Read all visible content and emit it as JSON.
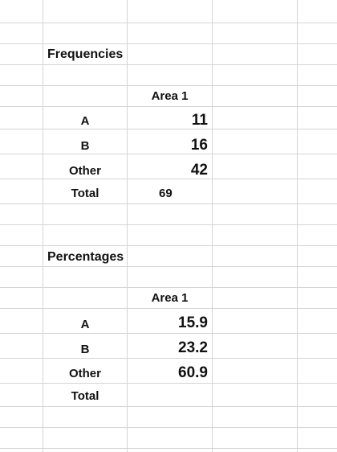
{
  "frequencies": {
    "title": "Frequencies",
    "column_header": "Area 1",
    "rows": [
      {
        "label": "A",
        "value": "11"
      },
      {
        "label": "B",
        "value": "16"
      },
      {
        "label": "Other",
        "value": "42"
      }
    ],
    "total_label": "Total",
    "total_value": "69"
  },
  "percentages": {
    "title": "Percentages",
    "column_header": "Area 1",
    "rows": [
      {
        "label": "A",
        "value": "15.9"
      },
      {
        "label": "B",
        "value": "23.2"
      },
      {
        "label": "Other",
        "value": "60.9"
      }
    ],
    "total_label": "Total",
    "total_value": ""
  },
  "colors": {
    "gridline": "#d4d4d4",
    "text": "#111111",
    "background": "#ffffff"
  }
}
